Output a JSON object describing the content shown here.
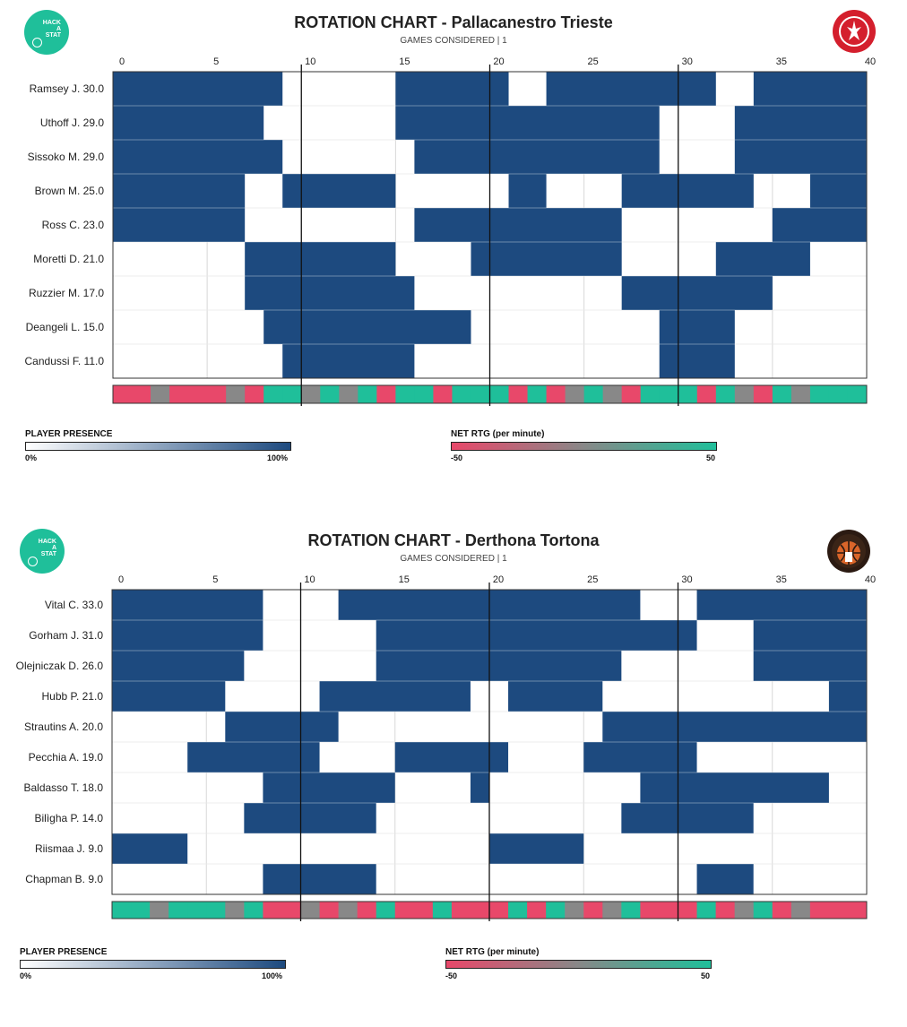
{
  "colors": {
    "presence": "#1d4a7f",
    "positive": "#1fbf9a",
    "negative": "#e8486a",
    "neutral": "#888888",
    "hack_logo": "#1fbf9a"
  },
  "hack_logo_text": "HACK A STAT",
  "chart_data": [
    {
      "type": "heatmap",
      "title": "ROTATION CHART - Pallacanestro Trieste",
      "subtitle": "GAMES CONSIDERED | 1",
      "xlim": [
        0,
        40
      ],
      "xticks": [
        0,
        5,
        10,
        15,
        20,
        25,
        30,
        35,
        40
      ],
      "players": [
        {
          "name": "Ramsey J.",
          "minutes": "30.0",
          "stints": [
            [
              0,
              9
            ],
            [
              15,
              21
            ],
            [
              23,
              32
            ],
            [
              34,
              40
            ]
          ]
        },
        {
          "name": "Uthoff J.",
          "minutes": "29.0",
          "stints": [
            [
              0,
              8
            ],
            [
              15,
              29
            ],
            [
              33,
              40
            ]
          ]
        },
        {
          "name": "Sissoko M.",
          "minutes": "29.0",
          "stints": [
            [
              0,
              9
            ],
            [
              16,
              29
            ],
            [
              33,
              40
            ]
          ]
        },
        {
          "name": "Brown M.",
          "minutes": "25.0",
          "stints": [
            [
              0,
              7
            ],
            [
              9,
              15
            ],
            [
              21,
              23
            ],
            [
              27,
              34
            ],
            [
              37,
              40
            ]
          ]
        },
        {
          "name": "Ross C.",
          "minutes": "23.0",
          "stints": [
            [
              0,
              7
            ],
            [
              16,
              27
            ],
            [
              35,
              40
            ]
          ]
        },
        {
          "name": "Moretti D.",
          "minutes": "21.0",
          "stints": [
            [
              7,
              15
            ],
            [
              19,
              27
            ],
            [
              32,
              37
            ]
          ]
        },
        {
          "name": "Ruzzier M.",
          "minutes": "17.0",
          "stints": [
            [
              7,
              16
            ],
            [
              27,
              35
            ]
          ]
        },
        {
          "name": "Deangeli L.",
          "minutes": "15.0",
          "stints": [
            [
              8,
              19
            ],
            [
              29,
              33
            ]
          ]
        },
        {
          "name": "Candussi F.",
          "minutes": "11.0",
          "stints": [
            [
              9,
              16
            ],
            [
              29,
              33
            ]
          ]
        }
      ],
      "net_rtg": [
        "neg",
        "neg",
        "neu",
        "neg",
        "neg",
        "neg",
        "neu",
        "neg",
        "pos",
        "pos",
        "neu",
        "pos",
        "neu",
        "pos",
        "neg",
        "pos",
        "pos",
        "neg",
        "pos",
        "pos",
        "pos",
        "neg",
        "pos",
        "neg",
        "neu",
        "pos",
        "neu",
        "neg",
        "pos",
        "pos",
        "pos",
        "neg",
        "pos",
        "neu",
        "neg",
        "pos",
        "neu",
        "pos",
        "pos",
        "pos"
      ],
      "legend": {
        "presence_title": "PLAYER PRESENCE",
        "presence_min": "0%",
        "presence_max": "100%",
        "net_title": "NET RTG (per minute)",
        "net_min": "-50",
        "net_max": "50"
      }
    },
    {
      "type": "heatmap",
      "title": "ROTATION CHART - Derthona Tortona",
      "subtitle": "GAMES CONSIDERED | 1",
      "xlim": [
        0,
        40
      ],
      "xticks": [
        0,
        5,
        10,
        15,
        20,
        25,
        30,
        35,
        40
      ],
      "players": [
        {
          "name": "Vital C.",
          "minutes": "33.0",
          "stints": [
            [
              0,
              8
            ],
            [
              12,
              28
            ],
            [
              31,
              40
            ]
          ]
        },
        {
          "name": "Gorham J.",
          "minutes": "31.0",
          "stints": [
            [
              0,
              8
            ],
            [
              14,
              31
            ],
            [
              34,
              40
            ]
          ]
        },
        {
          "name": "Olejniczak D.",
          "minutes": "26.0",
          "stints": [
            [
              0,
              7
            ],
            [
              14,
              27
            ],
            [
              34,
              40
            ]
          ]
        },
        {
          "name": "Hubb P.",
          "minutes": "21.0",
          "stints": [
            [
              0,
              6
            ],
            [
              11,
              19
            ],
            [
              21,
              26
            ],
            [
              38,
              40
            ]
          ]
        },
        {
          "name": "Strautins A.",
          "minutes": "20.0",
          "stints": [
            [
              6,
              12
            ],
            [
              26,
              40
            ]
          ]
        },
        {
          "name": "Pecchia A.",
          "minutes": "19.0",
          "stints": [
            [
              4,
              11
            ],
            [
              15,
              21
            ],
            [
              25,
              31
            ]
          ]
        },
        {
          "name": "Baldasso T.",
          "minutes": "18.0",
          "stints": [
            [
              8,
              15
            ],
            [
              19,
              20
            ],
            [
              28,
              38
            ]
          ]
        },
        {
          "name": "Bilìgha P.",
          "minutes": "14.0",
          "stints": [
            [
              7,
              14
            ],
            [
              27,
              34
            ]
          ]
        },
        {
          "name": "Riismaa J.",
          "minutes": "9.0",
          "stints": [
            [
              0,
              4
            ],
            [
              20,
              25
            ]
          ]
        },
        {
          "name": "Chapman B.",
          "minutes": "9.0",
          "stints": [
            [
              8,
              14
            ],
            [
              31,
              34
            ]
          ]
        }
      ],
      "net_rtg": [
        "pos",
        "pos",
        "neu",
        "pos",
        "pos",
        "pos",
        "neu",
        "pos",
        "neg",
        "neg",
        "neu",
        "neg",
        "neu",
        "neg",
        "pos",
        "neg",
        "neg",
        "pos",
        "neg",
        "neg",
        "neg",
        "pos",
        "neg",
        "pos",
        "neu",
        "neg",
        "neu",
        "pos",
        "neg",
        "neg",
        "neg",
        "pos",
        "neg",
        "neu",
        "pos",
        "neg",
        "neu",
        "neg",
        "neg",
        "neg"
      ],
      "legend": {
        "presence_title": "PLAYER PRESENCE",
        "presence_min": "0%",
        "presence_max": "100%",
        "net_title": "NET RTG (per minute)",
        "net_min": "-50",
        "net_max": "50"
      }
    }
  ]
}
